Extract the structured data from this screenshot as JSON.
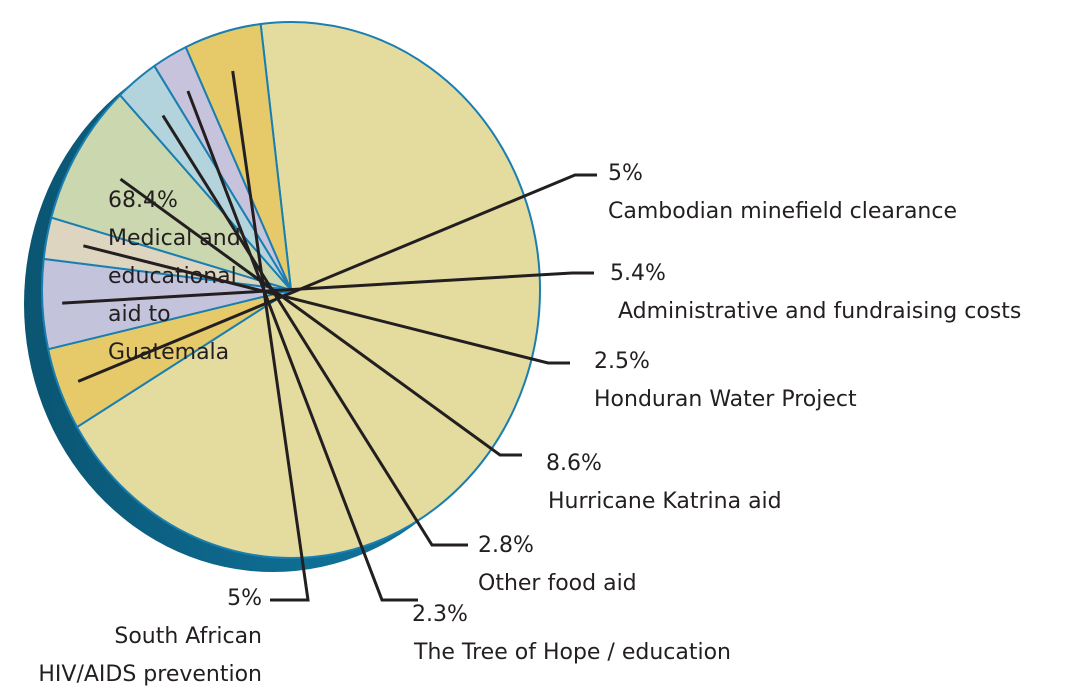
{
  "chart_data": {
    "type": "pie",
    "title": "",
    "colors": {
      "edge": "#1a7fb0",
      "rim": "#0f6f96",
      "rim_dark": "#0a5572",
      "leader": "#231f20",
      "text": "#231f20"
    },
    "slices": [
      {
        "value": 68.4,
        "pct": "68.4%",
        "lines": [
          "Medical and",
          "educational",
          "aid to",
          "Guatemala"
        ],
        "color": "#e4dc9f"
      },
      {
        "value": 5,
        "pct": "5%",
        "lines": [
          "Cambodian minefield clearance"
        ],
        "color": "#e6ca6a"
      },
      {
        "value": 5.4,
        "pct": "5.4%",
        "lines": [
          "Administrative and fundraising costs"
        ],
        "color": "#c4c3dc"
      },
      {
        "value": 2.5,
        "pct": "2.5%",
        "lines": [
          "Honduran Water Project"
        ],
        "color": "#ded5c0"
      },
      {
        "value": 8.6,
        "pct": "8.6%",
        "lines": [
          "Hurricane Katrina aid"
        ],
        "color": "#cbd7ae"
      },
      {
        "value": 2.8,
        "pct": "2.8%",
        "lines": [
          "Other food aid"
        ],
        "color": "#b3d4dc"
      },
      {
        "value": 2.3,
        "pct": "2.3%",
        "lines": [
          "The Tree of Hope / education"
        ],
        "color": "#c8c3dc"
      },
      {
        "value": 5,
        "pct": "5%",
        "lines": [
          "South African",
          "HIV/AIDS prevention"
        ],
        "color": "#e6ca6a"
      }
    ]
  }
}
